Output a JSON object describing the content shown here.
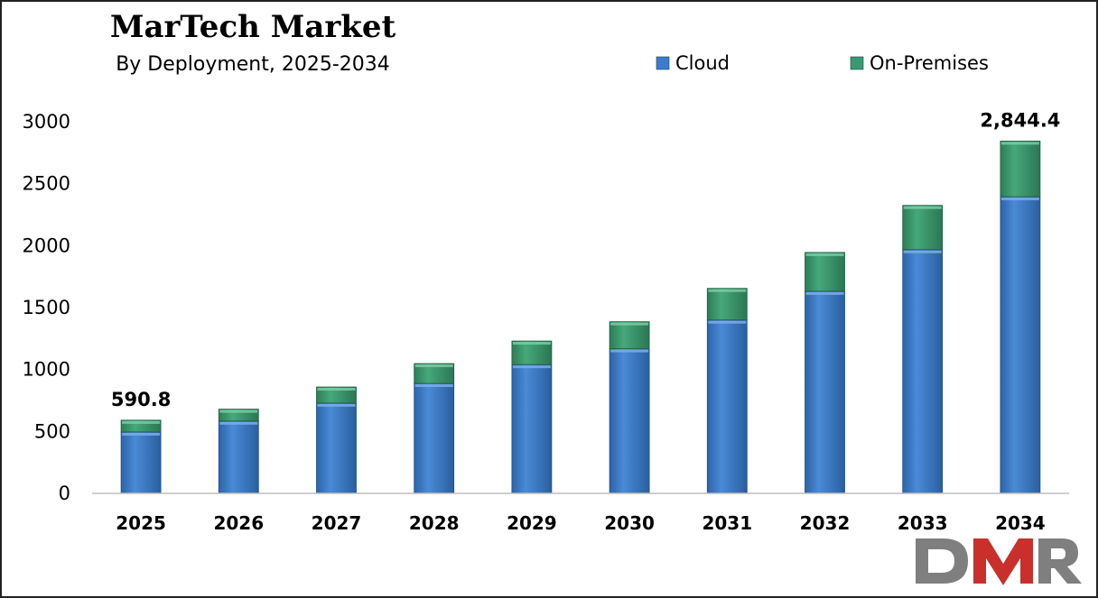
{
  "chart_data": {
    "type": "bar",
    "stacked": true,
    "title": "MarTech Market",
    "subtitle": "By Deployment, 2025-2034",
    "categories": [
      "2025",
      "2026",
      "2027",
      "2028",
      "2029",
      "2030",
      "2031",
      "2032",
      "2033",
      "2034"
    ],
    "series": [
      {
        "name": "Cloud",
        "color": "#3d7cc9",
        "values": [
          496,
          584,
          729,
          888,
          1040,
          1168,
          1400,
          1632,
          1968,
          2395
        ]
      },
      {
        "name": "On-Premises",
        "color": "#3a9a6e",
        "values": [
          94.8,
          96,
          130,
          160,
          190,
          218,
          255,
          313,
          357,
          449.4
        ]
      }
    ],
    "ylim": [
      0,
      3000
    ],
    "yticks": [
      "0",
      "500",
      "1000",
      "1500",
      "2000",
      "2500",
      "3000"
    ],
    "xlabel": "",
    "ylabel": "",
    "grid": false,
    "legend_position": "top-right",
    "data_labels": [
      {
        "category": "2025",
        "text": "590.8"
      },
      {
        "category": "2034",
        "text": "2,844.4"
      }
    ]
  },
  "logo": {
    "text": "DMR",
    "colors": [
      "#7f7f7f",
      "#c9302c"
    ]
  }
}
